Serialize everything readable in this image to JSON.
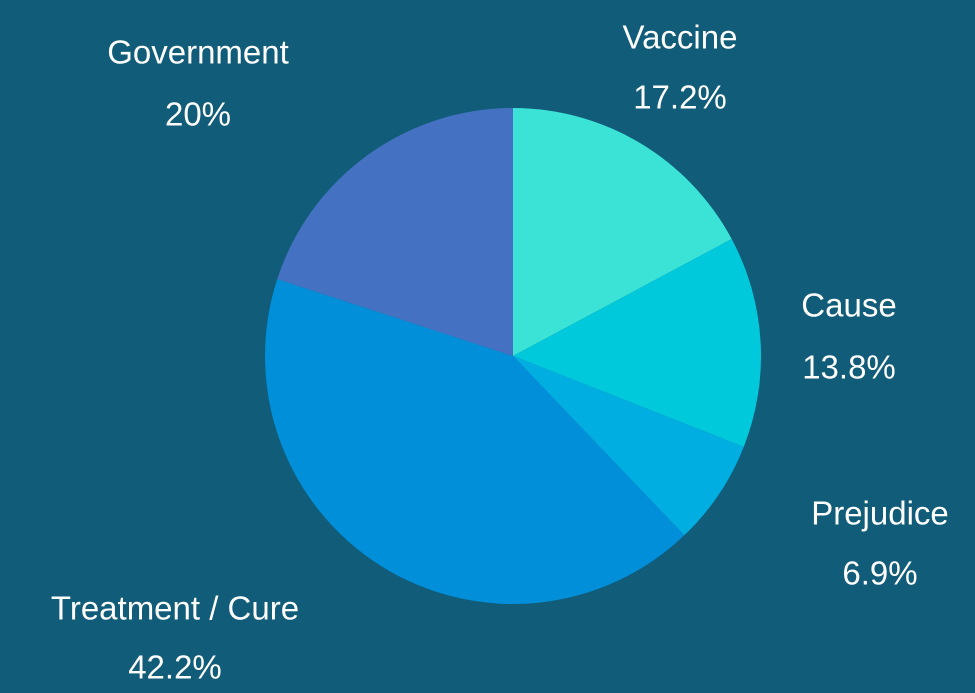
{
  "chart_data": {
    "type": "pie",
    "categories": [
      "Vaccine",
      "Cause",
      "Prejudice",
      "Treatment / Cure",
      "Government"
    ],
    "values": [
      17.2,
      13.8,
      6.9,
      42.2,
      20
    ],
    "value_labels": [
      "17.2%",
      "13.8%",
      "6.9%",
      "42.2%",
      "20%"
    ],
    "colors": [
      "#3ae3d6",
      "#00c9dc",
      "#00aee1",
      "#008fd8",
      "#4471c1"
    ]
  }
}
